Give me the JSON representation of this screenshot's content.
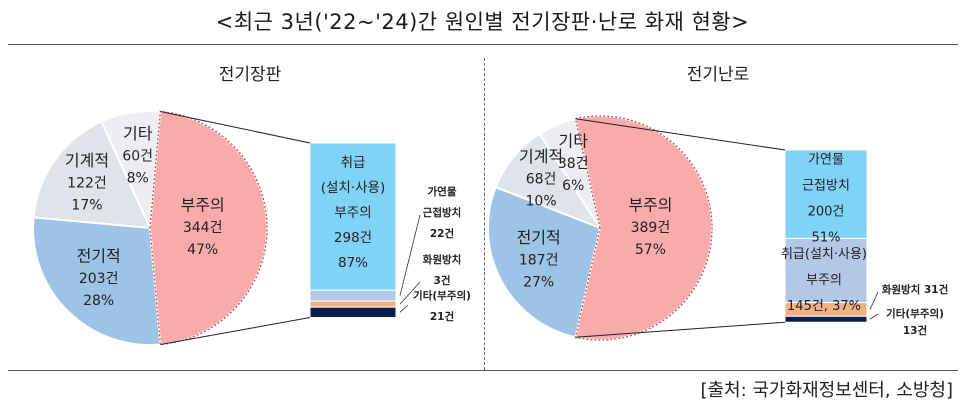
{
  "title": "<최근 3년('22~'24)간 원인별 전기장판·난로 화재 현황>",
  "source": "[출처: 국가화재정보센터, 소방청]",
  "chart_data": [
    {
      "type": "pie",
      "title": "전기장판",
      "slices": [
        {
          "label": "부주의",
          "count": "344건",
          "percent": "47%",
          "value": 344,
          "color": "#f9aaaa"
        },
        {
          "label": "전기적",
          "count": "203건",
          "percent": "28%",
          "value": 203,
          "color": "#9dc3e6"
        },
        {
          "label": "기계적",
          "count": "122건",
          "percent": "17%",
          "value": 122,
          "color": "#dfe3ea"
        },
        {
          "label": "기타",
          "count": "60건",
          "percent": "8%",
          "value": 60,
          "color": "#eceef2"
        }
      ],
      "breakdown_of": "부주의",
      "breakdown": [
        {
          "lines": [
            "취급",
            "(설치·사용)",
            "부주의",
            "298건",
            "87%"
          ],
          "value": 298,
          "color": "#7fd3f7"
        },
        {
          "lines": [
            "가연물",
            "근접방치",
            "22건"
          ],
          "value": 22,
          "color": "#b4c7e7"
        },
        {
          "lines": [
            "화원방치",
            "3건"
          ],
          "value": 3,
          "color": "#f4b183"
        },
        {
          "lines": [
            "기타(부주의)",
            "21건"
          ],
          "value": 21,
          "color": "#0b1f4f"
        }
      ]
    },
    {
      "type": "pie",
      "title": "전기난로",
      "slices": [
        {
          "label": "부주의",
          "count": "389건",
          "percent": "57%",
          "value": 389,
          "color": "#f9aaaa"
        },
        {
          "label": "전기적",
          "count": "187건",
          "percent": "27%",
          "value": 187,
          "color": "#9dc3e6"
        },
        {
          "label": "기계적",
          "count": "68건",
          "percent": "10%",
          "value": 68,
          "color": "#dfe3ea"
        },
        {
          "label": "기타",
          "count": "38건",
          "percent": "6%",
          "value": 38,
          "color": "#eceef2"
        }
      ],
      "breakdown_of": "부주의",
      "breakdown": [
        {
          "lines": [
            "가연물",
            "근접방치",
            "200건",
            "51%"
          ],
          "value": 200,
          "color": "#7fd3f7"
        },
        {
          "lines": [
            "취급(설치·사용)",
            "부주의",
            "145건, 37%"
          ],
          "value": 145,
          "color": "#b4c7e7"
        },
        {
          "lines": [
            "화원방치 31건"
          ],
          "value": 31,
          "color": "#f4b183"
        },
        {
          "lines": [
            "기타(부주의)",
            "13건"
          ],
          "value": 13,
          "color": "#0b1f4f"
        }
      ]
    }
  ]
}
